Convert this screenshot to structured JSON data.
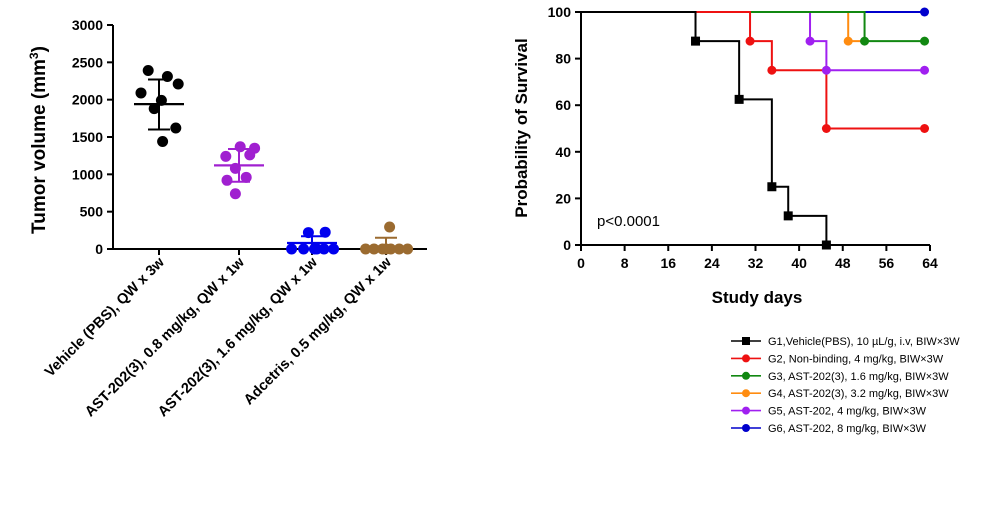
{
  "chart_data": [
    {
      "type": "scatter",
      "ylabel": "Tumor volume (mm",
      "ylabel_sup": "3",
      "ylabel_close": ")",
      "ylim": [
        0,
        3000
      ],
      "yticks": [
        0,
        500,
        1000,
        1500,
        2000,
        2500,
        3000
      ],
      "grid": false,
      "categories": [
        "Vehicle (PBS), QW x 3w",
        "AST-202(3), 0.8 mg/kg, QW x 1w",
        "AST-202(3), 1.6 mg/kg, QW x 1w",
        "Adcetris, 0.5 mg/kg, QW x 1w"
      ],
      "groups": [
        {
          "color": "#000000",
          "mean": 1940,
          "sd_low": 1600,
          "sd_high": 2270,
          "points": [
            {
              "dx": -0.45,
              "y": 2390
            },
            {
              "dx": 0.35,
              "y": 2310
            },
            {
              "dx": 0.8,
              "y": 2210
            },
            {
              "dx": -0.75,
              "y": 2090
            },
            {
              "dx": 0.1,
              "y": 1990
            },
            {
              "dx": -0.2,
              "y": 1880
            },
            {
              "dx": 0.7,
              "y": 1620
            },
            {
              "dx": 0.15,
              "y": 1440
            }
          ]
        },
        {
          "color": "#a020d0",
          "mean": 1120,
          "sd_low": 900,
          "sd_high": 1340,
          "points": [
            {
              "dx": 0.05,
              "y": 1370
            },
            {
              "dx": 0.65,
              "y": 1350
            },
            {
              "dx": -0.55,
              "y": 1240
            },
            {
              "dx": 0.45,
              "y": 1260
            },
            {
              "dx": -0.15,
              "y": 1080
            },
            {
              "dx": 0.3,
              "y": 960
            },
            {
              "dx": -0.5,
              "y": 920
            },
            {
              "dx": -0.15,
              "y": 740
            }
          ]
        },
        {
          "color": "#0000ee",
          "mean": 80,
          "sd_low": 0,
          "sd_high": 170,
          "points": [
            {
              "dx": -0.15,
              "y": 220
            },
            {
              "dx": 0.55,
              "y": 225
            },
            {
              "dx": -0.85,
              "y": 0
            },
            {
              "dx": -0.35,
              "y": 0
            },
            {
              "dx": 0.1,
              "y": 0
            },
            {
              "dx": 0.5,
              "y": 0
            },
            {
              "dx": 0.9,
              "y": 0
            },
            {
              "dx": 0.2,
              "y": 0
            }
          ]
        },
        {
          "color": "#9b6b30",
          "mean": 30,
          "sd_low": 0,
          "sd_high": 150,
          "points": [
            {
              "dx": 0.15,
              "y": 295
            },
            {
              "dx": -0.85,
              "y": 0
            },
            {
              "dx": -0.5,
              "y": 0
            },
            {
              "dx": -0.15,
              "y": 0
            },
            {
              "dx": 0.2,
              "y": 0
            },
            {
              "dx": 0.55,
              "y": 0
            },
            {
              "dx": 0.9,
              "y": 0
            },
            {
              "dx": 0.0,
              "y": 0
            }
          ]
        }
      ]
    },
    {
      "type": "line",
      "xlabel": "Study days",
      "ylabel": "Probability of Survival",
      "xlim": [
        0,
        64
      ],
      "ylim": [
        0,
        100
      ],
      "xticks": [
        0,
        8,
        16,
        24,
        32,
        40,
        48,
        56,
        64
      ],
      "yticks": [
        0,
        20,
        40,
        60,
        80,
        100
      ],
      "grid": false,
      "annotation": "p<0.0001",
      "legend_position": "bottom-right",
      "series": [
        {
          "name": "G1,Vehicle(PBS), 10 µL/g, i.v, BIW×3W",
          "color": "#000000",
          "marker": "square",
          "steps": [
            [
              0,
              100
            ],
            [
              21,
              87.5
            ],
            [
              29,
              62.5
            ],
            [
              35,
              25
            ],
            [
              38,
              12.5
            ],
            [
              45,
              0
            ]
          ],
          "markers": [
            [
              21,
              87.5
            ],
            [
              29,
              62.5
            ],
            [
              35,
              25
            ],
            [
              38,
              12.5
            ],
            [
              45,
              0
            ]
          ]
        },
        {
          "name": "G2, Non-binding, 4 mg/kg, BIW×3W",
          "color": "#ee1111",
          "marker": "circle",
          "steps": [
            [
              0,
              100
            ],
            [
              31,
              87.5
            ],
            [
              35,
              75
            ],
            [
              45,
              50
            ],
            [
              63,
              50
            ]
          ],
          "markers": [
            [
              31,
              87.5
            ],
            [
              35,
              75
            ],
            [
              45,
              50
            ],
            [
              63,
              50
            ]
          ]
        },
        {
          "name": "G3, AST-202(3), 1.6 mg/kg,  BIW×3W",
          "color": "#118811",
          "marker": "circle",
          "steps": [
            [
              0,
              100
            ],
            [
              52,
              87.5
            ],
            [
              63,
              87.5
            ]
          ],
          "markers": [
            [
              52,
              87.5
            ],
            [
              63,
              87.5
            ]
          ]
        },
        {
          "name": "G4, AST-202(3), 3.2 mg/kg, BIW×3W",
          "color": "#ff8c10",
          "marker": "circle",
          "steps": [
            [
              0,
              100
            ],
            [
              49,
              87.5
            ],
            [
              52,
              87.5
            ]
          ],
          "markers": [
            [
              49,
              87.5
            ]
          ]
        },
        {
          "name": "G5, AST-202, 4 mg/kg, BIW×3W",
          "color": "#a020f0",
          "marker": "circle",
          "steps": [
            [
              0,
              100
            ],
            [
              42,
              87.5
            ],
            [
              45,
              75
            ],
            [
              63,
              75
            ]
          ],
          "markers": [
            [
              42,
              87.5
            ],
            [
              45,
              75
            ],
            [
              63,
              75
            ]
          ]
        },
        {
          "name": "G6,  AST-202, 8 mg/kg, BIW×3W",
          "color": "#0000cc",
          "marker": "circle",
          "steps": [
            [
              0,
              100
            ],
            [
              63,
              100
            ]
          ],
          "markers": [
            [
              63,
              100
            ]
          ]
        }
      ]
    }
  ]
}
